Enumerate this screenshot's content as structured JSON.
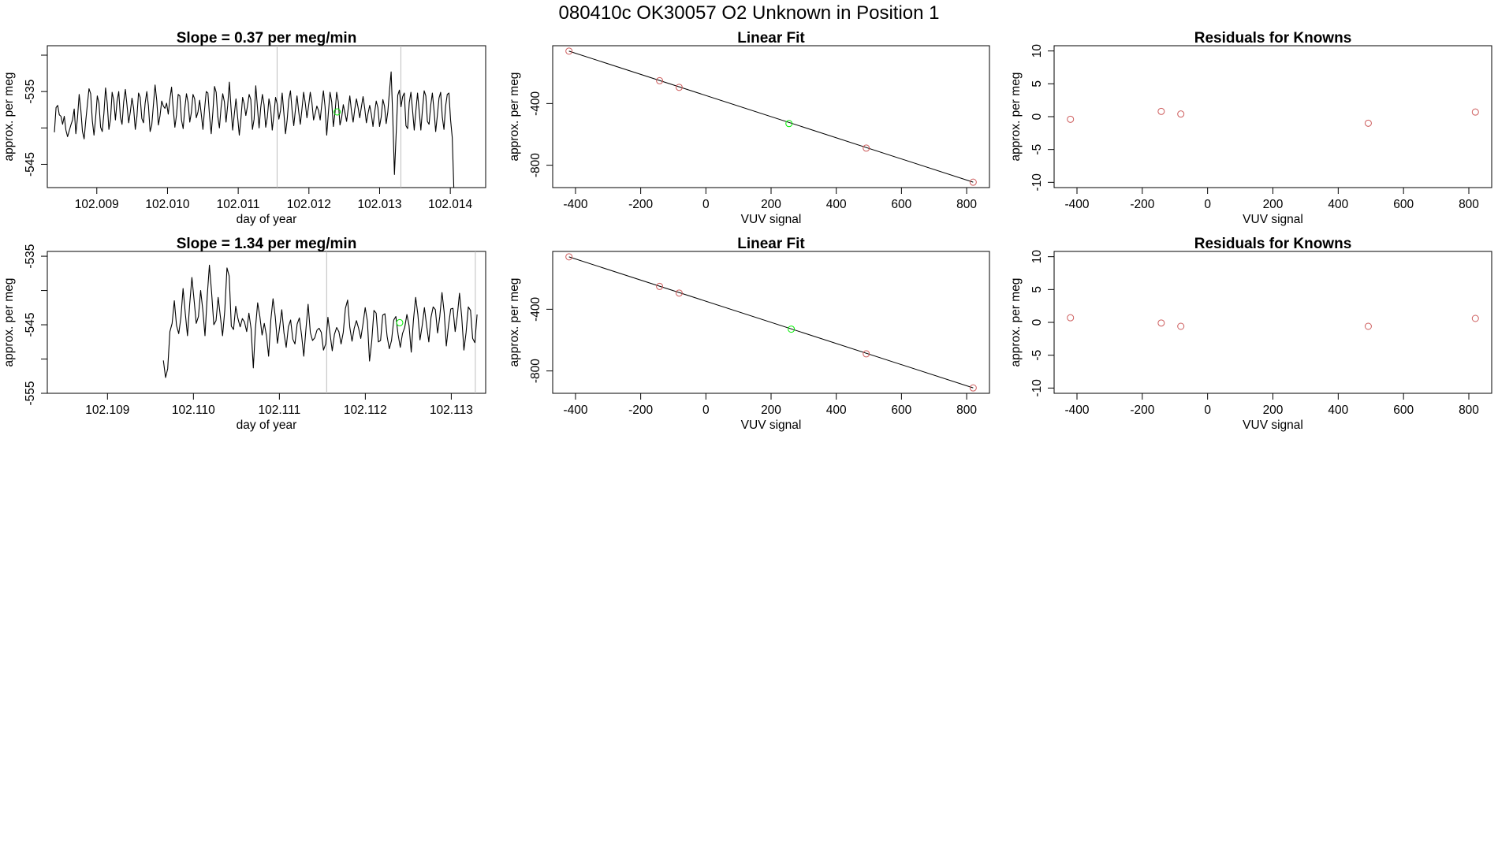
{
  "page_title": "080410c      OK30057   O2 Unknown in Position  1",
  "colors": {
    "line": "#000000",
    "known_point": "#cd5c5c",
    "unknown_point": "#00ee00",
    "marker_line": "#bebebe",
    "frame": "#000000"
  },
  "chart_data": [
    {
      "type": "line",
      "title": "Slope =  0.37  per meg/min",
      "xlabel": "day of year",
      "ylabel": "approx. per meg",
      "xlim": [
        102.0083,
        102.0145
      ],
      "ylim": [
        -548.2,
        -528.7
      ],
      "xticks": [
        "102.009",
        "102.010",
        "102.011",
        "102.012",
        "102.013",
        "102.014"
      ],
      "yticks": [
        "-535",
        "-545"
      ],
      "vlines": [
        102.01155,
        102.0133
      ],
      "series": [
        {
          "x_start": 102.0084,
          "x_end": 102.01405,
          "values": [
            -540.6,
            -537.2,
            -536.9,
            -538.2,
            -538.4,
            -539.5,
            -538.4,
            -540.3,
            -541.2,
            -540.4,
            -539.6,
            -538.9,
            -537.4,
            -540.8,
            -538.6,
            -535.4,
            -537.5,
            -540.5,
            -541.5,
            -539.1,
            -536.8,
            -534.6,
            -535.3,
            -539.0,
            -541.0,
            -538.6,
            -535.6,
            -536.6,
            -539.9,
            -540.5,
            -538.0,
            -534.5,
            -536.6,
            -540.2,
            -538.8,
            -535.1,
            -536.2,
            -538.9,
            -536.3,
            -535.0,
            -538.5,
            -539.5,
            -536.4,
            -534.7,
            -536.9,
            -539.3,
            -537.8,
            -535.9,
            -537.3,
            -540.2,
            -538.4,
            -535.2,
            -535.8,
            -538.7,
            -539.3,
            -536.6,
            -535.0,
            -537.0,
            -540.5,
            -539.6,
            -536.8,
            -534.1,
            -536.2,
            -539.6,
            -538.3,
            -536.3,
            -537.0,
            -537.3,
            -536.6,
            -538.1,
            -536.0,
            -534.4,
            -537.3,
            -539.9,
            -538.2,
            -535.4,
            -535.6,
            -538.9,
            -540.1,
            -537.3,
            -535.3,
            -536.5,
            -539.2,
            -537.9,
            -535.4,
            -536.0,
            -538.6,
            -537.8,
            -536.2,
            -538.1,
            -540.2,
            -537.4,
            -535.0,
            -535.2,
            -538.4,
            -540.8,
            -537.8,
            -534.3,
            -535.1,
            -538.4,
            -540.0,
            -537.2,
            -535.3,
            -536.4,
            -539.2,
            -536.9,
            -533.7,
            -537.2,
            -540.3,
            -538.1,
            -536.0,
            -538.5,
            -541.0,
            -538.7,
            -535.8,
            -536.7,
            -538.3,
            -537.0,
            -535.4,
            -536.1,
            -540.2,
            -538.8,
            -534.2,
            -537.1,
            -540.0,
            -537.2,
            -535.4,
            -536.8,
            -539.9,
            -538.5,
            -536.0,
            -537.2,
            -540.3,
            -538.2,
            -535.8,
            -536.7,
            -538.8,
            -537.6,
            -535.2,
            -537.9,
            -540.8,
            -538.9,
            -536.1,
            -534.9,
            -537.6,
            -539.7,
            -537.6,
            -535.6,
            -537.7,
            -539.5,
            -537.4,
            -535.1,
            -536.6,
            -538.6,
            -537.0,
            -535.1,
            -536.5,
            -538.9,
            -538.0,
            -537.0,
            -537.6,
            -538.9,
            -536.8,
            -534.9,
            -537.1,
            -541.0,
            -537.9,
            -535.1,
            -536.4,
            -539.8,
            -537.9,
            -535.1,
            -536.4,
            -539.6,
            -538.6,
            -536.8,
            -537.9,
            -539.1,
            -537.4,
            -535.6,
            -537.7,
            -539.2,
            -537.4,
            -536.0,
            -537.2,
            -538.6,
            -537.1,
            -535.7,
            -537.3,
            -539.3,
            -538.0,
            -536.9,
            -538.1,
            -539.8,
            -537.9,
            -536.3,
            -537.2,
            -539.8,
            -538.5,
            -536.1,
            -537.0,
            -539.4,
            -537.8,
            -534.9,
            -532.3,
            -538.6,
            -546.4,
            -541.0,
            -535.5,
            -534.8,
            -537.1,
            -535.7,
            -535.2,
            -539.7,
            -540.1,
            -536.5,
            -535.1,
            -537.6,
            -540.3,
            -537.6,
            -535.2,
            -537.7,
            -540.3,
            -537.4,
            -534.9,
            -535.6,
            -539.1,
            -539.5,
            -536.9,
            -535.2,
            -537.6,
            -540.5,
            -538.3,
            -535.9,
            -535.1,
            -538.5,
            -540.2,
            -537.0,
            -535.4,
            -535.2,
            -538.9,
            -541.3,
            -548.2
          ]
        }
      ],
      "highlight_points": [
        {
          "x": 102.0124,
          "y": -537.8
        }
      ]
    },
    {
      "type": "scatter",
      "title": "Linear Fit",
      "xlabel": "VUV signal",
      "ylabel": "approx. per meg",
      "xlim": [
        -470,
        870
      ],
      "ylim": [
        -945,
        -25
      ],
      "xticks": [
        -400,
        -200,
        0,
        200,
        400,
        600,
        800
      ],
      "yticks": [
        -400,
        -800
      ],
      "fit_line": {
        "x": [
          -420,
          820
        ],
        "y": [
          -60,
          -910
        ]
      },
      "known_points": [
        {
          "x": -420,
          "y": -60
        },
        {
          "x": -142,
          "y": -252
        },
        {
          "x": -82,
          "y": -295
        },
        {
          "x": 492,
          "y": -689
        },
        {
          "x": 820,
          "y": -910
        }
      ],
      "unknown_points": [
        {
          "x": 255,
          "y": -530
        }
      ]
    },
    {
      "type": "scatter",
      "title": "Residuals for Knowns",
      "xlabel": "VUV signal",
      "ylabel": "approx. per meg",
      "xlim": [
        -470,
        870
      ],
      "ylim": [
        -10.8,
        10.8
      ],
      "xticks": [
        -400,
        -200,
        0,
        200,
        400,
        600,
        800
      ],
      "yticks": [
        10,
        5,
        0,
        -5,
        -10
      ],
      "known_points": [
        {
          "x": -420,
          "y": -0.4
        },
        {
          "x": -142,
          "y": 0.8
        },
        {
          "x": -82,
          "y": 0.4
        },
        {
          "x": 492,
          "y": -1.0
        },
        {
          "x": 820,
          "y": 0.7
        }
      ]
    },
    {
      "type": "line",
      "title": "Slope =  1.34  per meg/min",
      "xlabel": "day of year",
      "ylabel": "approx. per meg",
      "xlim": [
        102.1083,
        102.1134
      ],
      "ylim": [
        -555.0,
        -534.3
      ],
      "xticks": [
        "102.109",
        "102.110",
        "102.111",
        "102.112",
        "102.113"
      ],
      "yticks": [
        "-535",
        "-545",
        "-555"
      ],
      "vlines": [
        102.11155,
        102.11328
      ],
      "series": [
        {
          "x_start": 102.10965,
          "x_end": 102.1133,
          "values": [
            -550.2,
            -552.7,
            -551.4,
            -546.0,
            -544.8,
            -541.5,
            -545.1,
            -546.3,
            -544.0,
            -539.7,
            -543.3,
            -546.6,
            -542.0,
            -538.1,
            -541.3,
            -544.8,
            -543.8,
            -540.0,
            -542.9,
            -546.6,
            -540.9,
            -536.3,
            -540.3,
            -545.0,
            -544.4,
            -541.0,
            -543.8,
            -546.6,
            -542.9,
            -536.7,
            -537.9,
            -545.2,
            -545.7,
            -542.3,
            -544.1,
            -545.3,
            -544.1,
            -544.6,
            -546.0,
            -543.3,
            -545.6,
            -551.3,
            -545.5,
            -541.8,
            -543.8,
            -546.5,
            -544.8,
            -546.6,
            -549.6,
            -544.3,
            -541.2,
            -543.8,
            -547.7,
            -545.3,
            -542.8,
            -546.2,
            -548.3,
            -545.3,
            -544.3,
            -547.1,
            -547.8,
            -544.9,
            -544.0,
            -546.5,
            -549.6,
            -545.7,
            -542.0,
            -546.1,
            -547.3,
            -546.9,
            -545.8,
            -545.5,
            -546.1,
            -548.7,
            -547.8,
            -543.9,
            -546.4,
            -548.8,
            -546.4,
            -545.4,
            -546.0,
            -547.8,
            -546.1,
            -542.6,
            -541.4,
            -545.4,
            -547.4,
            -545.5,
            -544.4,
            -545.5,
            -547.0,
            -544.9,
            -542.5,
            -544.5,
            -550.3,
            -547.4,
            -542.9,
            -543.3,
            -547.5,
            -547.3,
            -543.6,
            -543.4,
            -546.7,
            -548.5,
            -547.3,
            -544.3,
            -543.8,
            -546.4,
            -548.3,
            -546.3,
            -545.4,
            -543.5,
            -545.1,
            -549.0,
            -544.3,
            -541.0,
            -543.5,
            -547.2,
            -545.1,
            -542.5,
            -545.1,
            -547.5,
            -543.9,
            -542.4,
            -542.8,
            -546.2,
            -543.8,
            -540.3,
            -543.2,
            -548.1,
            -545.1,
            -542.7,
            -542.6,
            -546.0,
            -543.6,
            -540.4,
            -543.8,
            -548.7,
            -546.1,
            -542.4,
            -542.9,
            -547.0,
            -547.6,
            -543.5
          ]
        }
      ],
      "highlight_points": [
        {
          "x": 102.1124,
          "y": -544.7
        }
      ]
    },
    {
      "type": "scatter",
      "title": "Linear Fit",
      "xlabel": "VUV signal",
      "ylabel": "approx. per meg",
      "xlim": [
        -470,
        870
      ],
      "ylim": [
        -945,
        -25
      ],
      "xticks": [
        -400,
        -200,
        0,
        200,
        400,
        600,
        800
      ],
      "yticks": [
        -400,
        -800
      ],
      "fit_line": {
        "x": [
          -420,
          820
        ],
        "y": [
          -60,
          -910
        ]
      },
      "known_points": [
        {
          "x": -420,
          "y": -60
        },
        {
          "x": -142,
          "y": -252
        },
        {
          "x": -82,
          "y": -295
        },
        {
          "x": 492,
          "y": -689
        },
        {
          "x": 820,
          "y": -910
        }
      ],
      "unknown_points": [
        {
          "x": 262,
          "y": -529
        }
      ]
    },
    {
      "type": "scatter",
      "title": "Residuals for Knowns",
      "xlabel": "VUV signal",
      "ylabel": "approx. per meg",
      "xlim": [
        -470,
        870
      ],
      "ylim": [
        -10.8,
        10.8
      ],
      "xticks": [
        -400,
        -200,
        0,
        200,
        400,
        600,
        800
      ],
      "yticks": [
        10,
        5,
        0,
        -5,
        -10
      ],
      "known_points": [
        {
          "x": -420,
          "y": 0.7
        },
        {
          "x": -142,
          "y": -0.1
        },
        {
          "x": -82,
          "y": -0.6
        },
        {
          "x": 492,
          "y": -0.6
        },
        {
          "x": 820,
          "y": 0.6
        }
      ]
    }
  ]
}
